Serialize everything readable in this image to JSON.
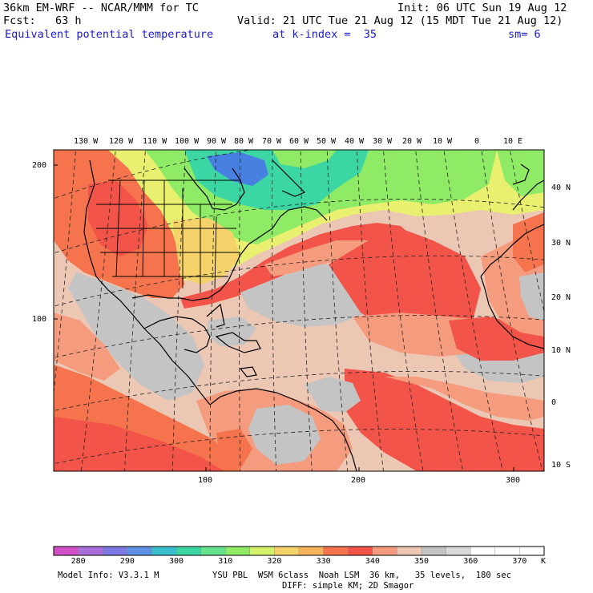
{
  "header": {
    "model_line": "36km EM-WRF -- NCAR/MMM for TC",
    "init_line": "Init: 06 UTC Sun 19 Aug 12",
    "fcst_line": "Fcst:   63 h",
    "valid_line": "Valid: 21 UTC Tue 21 Aug 12 (15 MDT Tue 21 Aug 12)",
    "field_name": "Equivalent potential temperature",
    "level_text": "at k-index =  35",
    "smooth_text": "sm= 6"
  },
  "map": {
    "top_lon_labels": [
      "130 W",
      "120 W",
      "110 W",
      "100 W",
      "90 W",
      "80 W",
      "70 W",
      "60 W",
      "50 W",
      "40 W",
      "30 W",
      "20 W",
      "10 W",
      "0",
      "10 E"
    ],
    "right_lat_labels": [
      "40 N",
      "30 N",
      "20 N",
      "10 N",
      "0",
      "10 S"
    ],
    "left_grid_labels": [
      "200",
      "100"
    ],
    "bottom_grid_labels": [
      "100",
      "200",
      "300"
    ],
    "colors": {
      "warm_orange": "#f5734d",
      "red": "#f2544a",
      "salmon": "#f59b7e",
      "tan": "#ebc7b4",
      "gray": "#c4c4c4",
      "yellow_green": "#e9f070",
      "green": "#8fea65",
      "teal": "#3bd7a8",
      "blue": "#4880e2"
    }
  },
  "legend": {
    "unit": "K",
    "tick_labels": [
      "280",
      "290",
      "300",
      "310",
      "320",
      "330",
      "340",
      "350",
      "360",
      "370"
    ],
    "bins": [
      "#d351c7",
      "#a86fd8",
      "#7d78e2",
      "#5f92e6",
      "#3bbfcf",
      "#3cd6a4",
      "#66e38f",
      "#8fea65",
      "#d4f06c",
      "#f5d36a",
      "#f8b45c",
      "#f5734d",
      "#f2544a",
      "#f59b7e",
      "#ebc7b4",
      "#c4c4c4",
      "#d9d9d9",
      "#ffffff",
      "#ffffff",
      "#ffffff"
    ]
  },
  "footer": {
    "model_info": "Model Info: V3.3.1 M",
    "physics": "YSU PBL  WSM 6class  Noah LSM  36 km,   35 levels,  180 sec",
    "diffusion": "DIFF: simple KM; 2D Smagor"
  }
}
